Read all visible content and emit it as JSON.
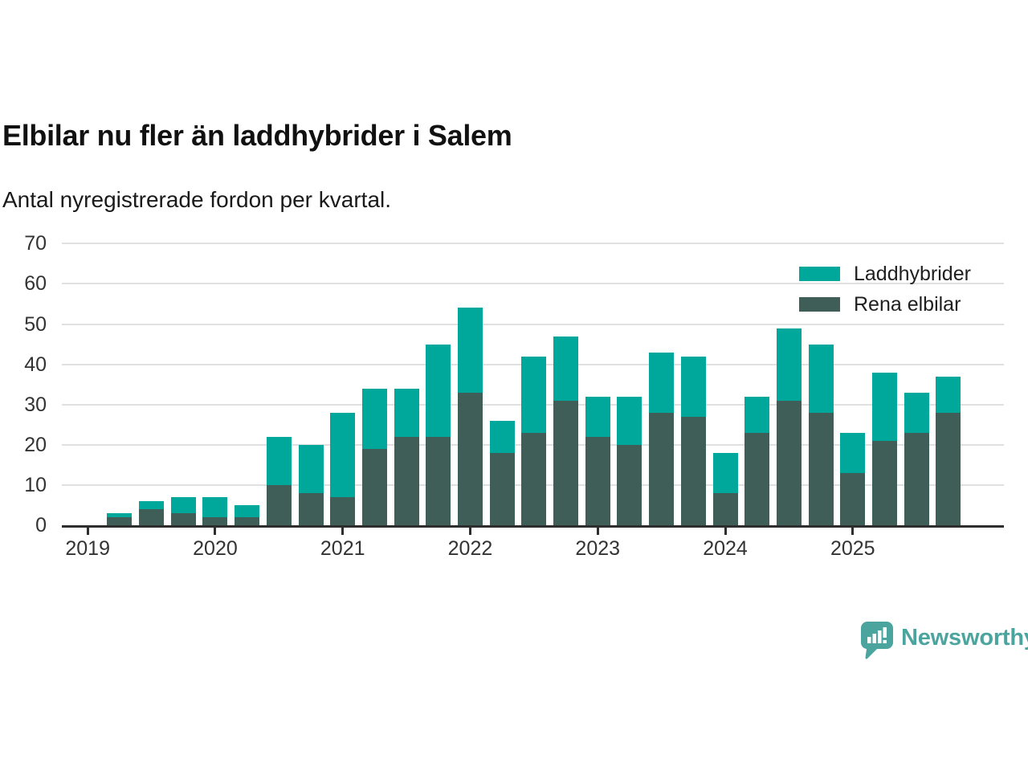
{
  "header": {
    "title": "Elbilar nu fler än laddhybrider i Salem",
    "subtitle": "Antal nyregistrerade fordon per kvartal."
  },
  "chart_data": {
    "type": "bar",
    "stacked": true,
    "title": "Elbilar nu fler än laddhybrider i Salem",
    "subtitle": "Antal nyregistrerade fordon per kvartal.",
    "xlabel": "",
    "ylabel": "",
    "ylim": [
      0,
      70
    ],
    "yticks": [
      0,
      10,
      20,
      30,
      40,
      50,
      60,
      70
    ],
    "grid": "horizontal",
    "legend_position": "top-right",
    "categories": [
      "2019 Q2",
      "2019 Q3",
      "2019 Q4",
      "2020 Q1",
      "2020 Q2",
      "2020 Q3",
      "2020 Q4",
      "2021 Q1",
      "2021 Q2",
      "2021 Q3",
      "2021 Q4",
      "2022 Q1",
      "2022 Q2",
      "2022 Q3",
      "2022 Q4",
      "2023 Q1",
      "2023 Q2",
      "2023 Q3",
      "2023 Q4",
      "2024 Q1",
      "2024 Q2",
      "2024 Q3",
      "2024 Q4",
      "2025 Q1",
      "2025 Q2",
      "2025 Q3",
      "2025 Q4"
    ],
    "x_year_ticks": [
      "2019",
      "2020",
      "2021",
      "2022",
      "2023",
      "2024",
      "2025"
    ],
    "series": [
      {
        "name": "Laddhybrider",
        "color": "#00a79b",
        "values": [
          1,
          2,
          4,
          5,
          3,
          12,
          12,
          21,
          15,
          12,
          23,
          21,
          8,
          19,
          16,
          10,
          12,
          15,
          15,
          10,
          9,
          18,
          17,
          10,
          17,
          10,
          9
        ]
      },
      {
        "name": "Rena elbilar",
        "color": "#3f5e58",
        "values": [
          2,
          4,
          3,
          2,
          2,
          10,
          8,
          7,
          19,
          22,
          22,
          33,
          18,
          23,
          31,
          22,
          20,
          28,
          27,
          8,
          23,
          31,
          28,
          13,
          21,
          23,
          28
        ]
      }
    ],
    "totals": [
      3,
      6,
      7,
      7,
      5,
      22,
      20,
      28,
      34,
      34,
      45,
      54,
      26,
      42,
      47,
      32,
      32,
      43,
      42,
      18,
      32,
      49,
      45,
      23,
      38,
      33,
      37
    ]
  },
  "footer": {
    "brand": "Newsworthy",
    "brand_color": "#4ba49d"
  }
}
